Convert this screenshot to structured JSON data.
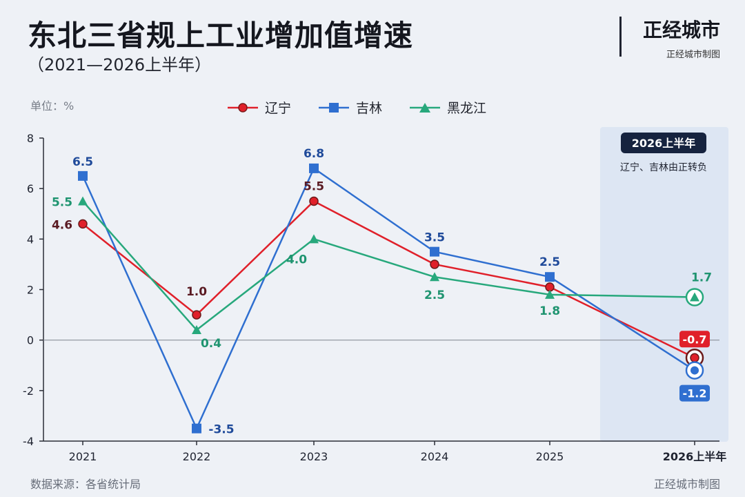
{
  "header": {
    "title": "东北三省规上工业增加值增速",
    "subtitle": "（2021—2026上半年）",
    "brand": "正经城市",
    "brand_sub": "正经城市制图"
  },
  "unit_label": "单位：%",
  "footer": {
    "source": "数据来源：各省统计局",
    "brand": "正经城市制图"
  },
  "highlight": {
    "badge": "2026上半年",
    "note": "辽宁、吉林由正转负",
    "color": "#dde6f3"
  },
  "chart_data": {
    "type": "line",
    "title": "东北三省规上工业增加值增速",
    "ylabel": "单位：%",
    "categories": [
      "2021",
      "2022",
      "2023",
      "2024",
      "2025",
      "2026上半年"
    ],
    "ylim": [
      -4,
      8
    ],
    "yticks": [
      "8",
      "6",
      "4",
      "2",
      "0",
      "-2",
      "-4"
    ],
    "grid": false,
    "legend_position": "top",
    "series": [
      {
        "name": "辽宁",
        "color": "#e0202a",
        "marker": "circle",
        "values": [
          4.6,
          1.0,
          5.5,
          3.0,
          2.1,
          -0.7
        ],
        "labels": [
          "4.6",
          "1.0",
          "5.5",
          "",
          "",
          "-0.7"
        ]
      },
      {
        "name": "吉林",
        "color": "#2f6fd0",
        "marker": "square",
        "values": [
          6.5,
          -3.5,
          6.8,
          3.5,
          2.5,
          -1.2
        ],
        "labels": [
          "6.5",
          "-3.5",
          "6.8",
          "3.5",
          "2.5",
          "-1.2"
        ]
      },
      {
        "name": "黑龙江",
        "color": "#27a87c",
        "marker": "triangle",
        "values": [
          5.5,
          0.4,
          4.0,
          2.5,
          1.8,
          1.7
        ],
        "labels": [
          "5.5",
          "0.4",
          "4.0",
          "2.5",
          "1.8",
          "1.7"
        ]
      }
    ],
    "last_category_color": "#2f6fd0"
  }
}
